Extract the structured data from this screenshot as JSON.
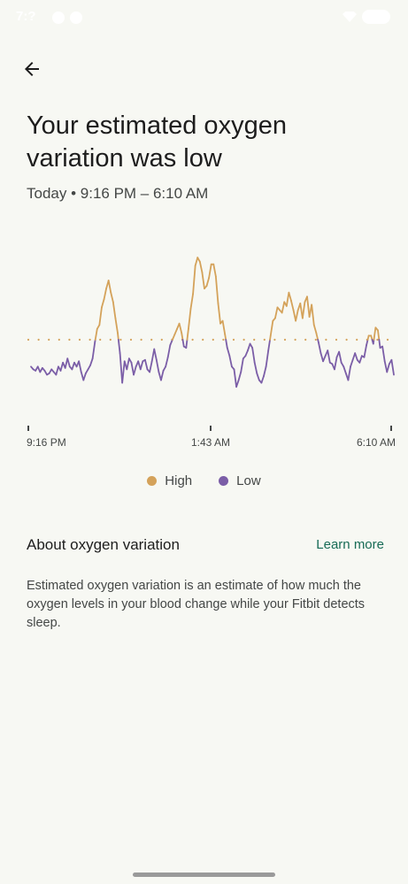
{
  "status_bar": {
    "time": "7:?",
    "icons": [
      "messenger-icon",
      "messenger-icon",
      "wifi-icon",
      "battery-icon"
    ]
  },
  "header": {
    "back_icon": "arrow-left-icon",
    "title": "Your estimated oxygen variation was low",
    "subtitle": "Today • 9:16 PM – 6:10 AM"
  },
  "chart_data": {
    "type": "line",
    "title": "",
    "xlabel": "",
    "ylabel": "",
    "x_ticks": [
      "9:16 PM",
      "1:43 AM",
      "6:10 AM"
    ],
    "threshold_line": "dotted",
    "legend_placement": "bottom-center",
    "series": [
      {
        "name": "High",
        "color": "#d4a25a",
        "values_relative_to_threshold": "above"
      },
      {
        "name": "Low",
        "color": "#7b5ea7",
        "values_relative_to_threshold": "below"
      }
    ],
    "values": [
      30,
      28,
      27,
      30,
      26,
      29,
      27,
      24,
      25,
      28,
      26,
      24,
      30,
      27,
      33,
      29,
      36,
      30,
      28,
      33,
      30,
      34,
      26,
      20,
      25,
      28,
      31,
      36,
      48,
      58,
      61,
      74,
      80,
      88,
      94,
      85,
      78,
      66,
      55,
      40,
      18,
      34,
      28,
      36,
      33,
      24,
      30,
      34,
      28,
      34,
      35,
      28,
      26,
      34,
      43,
      35,
      26,
      20,
      27,
      30,
      37,
      46,
      50,
      54,
      58,
      62,
      55,
      45,
      44,
      58,
      73,
      84,
      105,
      111,
      108,
      100,
      88,
      90,
      96,
      106,
      106,
      97,
      77,
      62,
      64,
      54,
      44,
      38,
      30,
      28,
      15,
      20,
      26,
      36,
      38,
      42,
      47,
      44,
      33,
      25,
      20,
      18,
      23,
      30,
      42,
      53,
      64,
      66,
      74,
      72,
      70,
      78,
      75,
      85,
      79,
      72,
      64,
      72,
      77,
      66,
      78,
      82,
      67,
      76,
      61,
      55,
      48,
      40,
      34,
      38,
      42,
      33,
      32,
      28,
      37,
      41,
      33,
      30,
      25,
      20,
      30,
      35,
      40,
      35,
      33,
      38,
      37,
      46,
      53,
      53,
      47,
      59,
      57,
      44,
      45,
      34,
      26,
      32,
      35,
      24
    ],
    "threshold": 50
  },
  "legend": {
    "high_label": "High",
    "low_label": "Low",
    "high_color": "#d4a25a",
    "low_color": "#7b5ea7"
  },
  "about": {
    "title": "About oxygen variation",
    "learn_more": "Learn more",
    "description": "Estimated oxygen variation is an estimate of how much the oxygen levels in your blood change while your Fitbit detects sleep."
  }
}
